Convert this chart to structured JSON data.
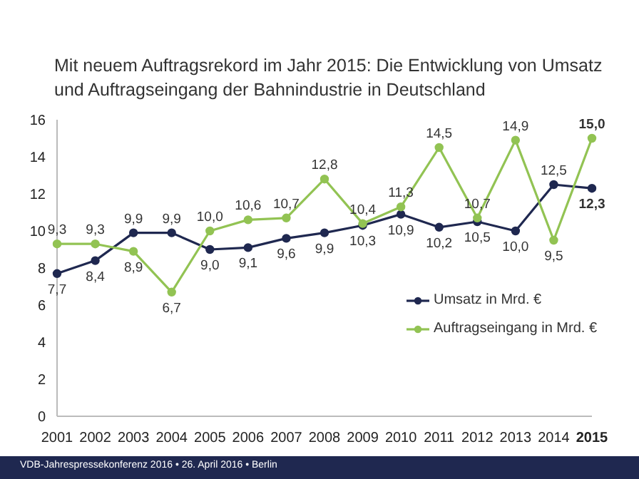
{
  "chart_data": {
    "type": "line",
    "title": "Mit neuem Auftragsrekord im Jahr 2015: Die Entwicklung von Umsatz und Auftragseingang der Bahnindustrie in Deutschland",
    "categories": [
      "2001",
      "2002",
      "2003",
      "2004",
      "2005",
      "2006",
      "2007",
      "2008",
      "2009",
      "2010",
      "2011",
      "2012",
      "2013",
      "2014",
      "2015"
    ],
    "series": [
      {
        "name": "Umsatz in Mrd. €",
        "color": "#1f2850",
        "values": [
          7.7,
          8.4,
          9.9,
          9.9,
          9.0,
          9.1,
          9.6,
          9.9,
          10.3,
          10.9,
          10.2,
          10.5,
          10.0,
          12.5,
          12.3
        ],
        "value_labels": [
          "7,7",
          "8,4",
          "9,9",
          "9,9",
          "9,0",
          "9,1",
          "9,6",
          "9,9",
          "10,3",
          "10,9",
          "10,2",
          "10,5",
          "10,0",
          "12,5",
          "12,3"
        ]
      },
      {
        "name": "Auftragseingang in Mrd. €",
        "color": "#92c353",
        "values": [
          9.3,
          9.3,
          8.9,
          6.7,
          10.0,
          10.6,
          10.7,
          12.8,
          10.4,
          11.3,
          14.5,
          10.7,
          14.9,
          9.5,
          15.0
        ],
        "value_labels": [
          "9,3",
          "9,3",
          "8,9",
          "6,7",
          "10,0",
          "10,6",
          "10,7",
          "12,8",
          "10,4",
          "11,3",
          "14,5",
          "10,7",
          "14,9",
          "9,5",
          "15,0"
        ]
      }
    ],
    "ylim": [
      0,
      16
    ],
    "yticks": [
      0,
      2,
      4,
      6,
      8,
      10,
      12,
      14,
      16
    ],
    "grid": false,
    "legend": "right",
    "marker": "circle",
    "line_style": "solid",
    "annotations": [
      "VDB-Jahrespressekonferenz 2016 • 26. April 2016 • Berlin"
    ]
  }
}
